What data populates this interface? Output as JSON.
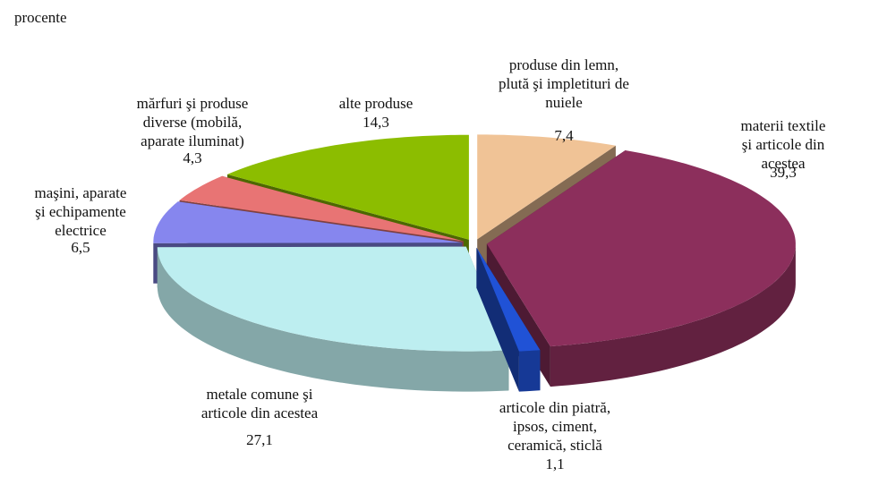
{
  "chart_data": {
    "type": "pie3d",
    "subtitle": "procente",
    "categories": [
      "produse din lemn,\nplută şi impletituri de\nnuiele",
      "materii textile\nşi articole din acestea",
      "articole din piatră,\nipsos, ciment,\nceramică, sticlă",
      "metale comune şi\narticole din acestea",
      "maşini, aparate\nşi echipamente\nelectrice",
      "mărfuri şi produse\ndiverse (mobilă,\naparate iluminat)",
      "alte produse"
    ],
    "values": [
      7.4,
      39.3,
      1.1,
      27.1,
      6.5,
      4.3,
      14.3
    ],
    "value_labels": [
      "7,4",
      "39,3",
      "1,1",
      "27,1",
      "6,5",
      "4,3",
      "14,3"
    ],
    "colors": [
      "#f0c396",
      "#8c2f5c",
      "#2052d6",
      "#bdeef0",
      "#8686ee",
      "#e87474",
      "#8cbd00"
    ]
  }
}
